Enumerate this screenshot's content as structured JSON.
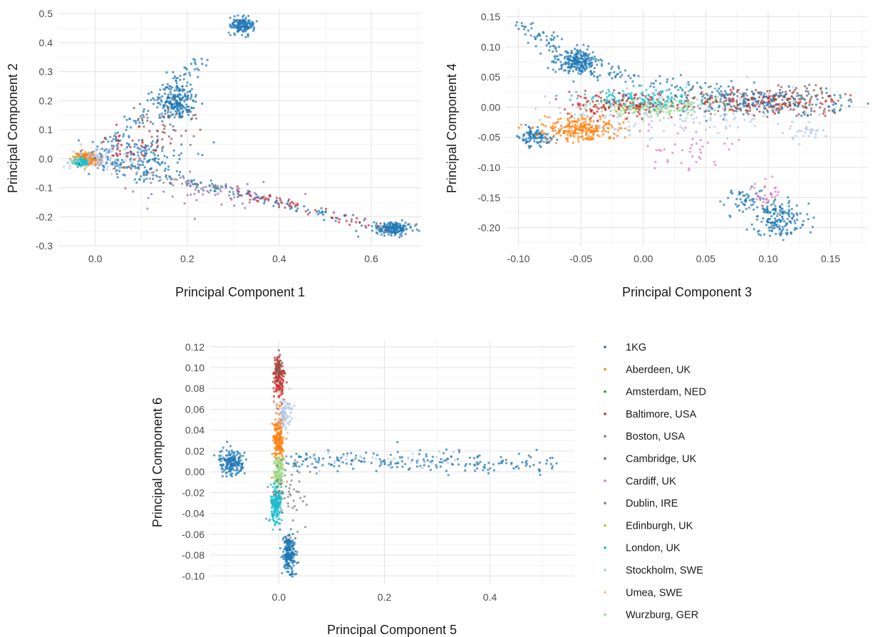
{
  "chart_data": [
    {
      "type": "scatter",
      "xlabel": "Principal Component 1",
      "ylabel": "Principal Component 2",
      "xlim": [
        -0.08,
        0.71
      ],
      "ylim": [
        -0.3,
        0.51
      ],
      "xticks": [
        0.0,
        0.2,
        0.4,
        0.6
      ],
      "yticks": [
        -0.3,
        -0.2,
        -0.1,
        0.0,
        0.1,
        0.2,
        0.3,
        0.4,
        0.5
      ],
      "xtick_labels": [
        "0.0",
        "0.2",
        "0.4",
        "0.6"
      ],
      "ytick_labels": [
        "-0.3",
        "-0.2",
        "-0.1",
        "0.0",
        "0.1",
        "0.2",
        "0.3",
        "0.4",
        "0.5"
      ],
      "grid": true,
      "clusters": [
        {
          "series": "Aberdeen, UK",
          "cx": -0.02,
          "cy": 0.0,
          "sx": 0.012,
          "sy": 0.01,
          "n": 260
        },
        {
          "series": "Wurzburg, GER",
          "cx": -0.035,
          "cy": -0.01,
          "sx": 0.008,
          "sy": 0.006,
          "n": 80
        },
        {
          "series": "London, UK",
          "cx": -0.03,
          "cy": -0.012,
          "sx": 0.008,
          "sy": 0.006,
          "n": 80
        },
        {
          "series": "Stockholm, SWE",
          "cx": 0.02,
          "cy": 0.0,
          "sx": 0.04,
          "sy": 0.02,
          "n": 120
        },
        {
          "series": "1KG",
          "cx": 0.32,
          "cy": 0.46,
          "sx": 0.012,
          "sy": 0.015,
          "n": 150
        },
        {
          "series": "1KG",
          "cx": 0.18,
          "cy": 0.19,
          "sx": 0.02,
          "sy": 0.03,
          "n": 200
        },
        {
          "series": "1KG",
          "cx": 0.65,
          "cy": -0.24,
          "sx": 0.02,
          "sy": 0.01,
          "n": 170
        },
        {
          "series": "1KG",
          "cx": 0.1,
          "cy": 0.0,
          "sx": 0.05,
          "sy": 0.04,
          "n": 140
        },
        {
          "series": "Baltimore, USA",
          "cx": 0.07,
          "cy": 0.04,
          "sx": 0.04,
          "sy": 0.03,
          "n": 40
        },
        {
          "series": "Boston, USA",
          "cx": 0.25,
          "cy": -0.12,
          "sx": 0.1,
          "sy": 0.04,
          "n": 50
        },
        {
          "series": "Cambridge, UK",
          "cx": 0.15,
          "cy": 0.12,
          "sx": 0.04,
          "sy": 0.05,
          "n": 40
        }
      ],
      "trails": [
        {
          "series": "1KG",
          "from": [
            0.0,
            0.0
          ],
          "to": [
            0.65,
            -0.25
          ],
          "spread": 0.01,
          "n": 140
        },
        {
          "series": "Baltimore, USA",
          "from": [
            0.3,
            -0.11
          ],
          "to": [
            0.65,
            -0.25
          ],
          "spread": 0.01,
          "n": 60
        },
        {
          "series": "1KG",
          "from": [
            0.02,
            0.02
          ],
          "to": [
            0.24,
            0.36
          ],
          "spread": 0.015,
          "n": 120
        },
        {
          "series": "Dublin, IRE",
          "from": [
            0.0,
            -0.02
          ],
          "to": [
            0.3,
            -0.12
          ],
          "spread": 0.01,
          "n": 60
        }
      ]
    },
    {
      "type": "scatter",
      "xlabel": "Principal Component 3",
      "ylabel": "Principal Component 4",
      "xlim": [
        -0.11,
        0.18
      ],
      "ylim": [
        -0.23,
        0.16
      ],
      "xticks": [
        -0.1,
        -0.05,
        0.0,
        0.05,
        0.1,
        0.15
      ],
      "yticks": [
        -0.2,
        -0.15,
        -0.1,
        -0.05,
        0.0,
        0.05,
        0.1,
        0.15
      ],
      "xtick_labels": [
        "-0.10",
        "-0.05",
        "0.00",
        "0.05",
        "0.10",
        "0.15"
      ],
      "ytick_labels": [
        "-0.20",
        "-0.15",
        "-0.10",
        "-0.05",
        "0.00",
        "0.05",
        "0.10",
        "0.15"
      ],
      "grid": true,
      "clusters": [
        {
          "series": "1KG",
          "cx": -0.052,
          "cy": 0.075,
          "sx": 0.008,
          "sy": 0.01,
          "n": 200
        },
        {
          "series": "1KG",
          "cx": -0.085,
          "cy": -0.05,
          "sx": 0.007,
          "sy": 0.008,
          "n": 100
        },
        {
          "series": "Aberdeen, UK",
          "cx": -0.05,
          "cy": -0.035,
          "sx": 0.015,
          "sy": 0.01,
          "n": 250
        },
        {
          "series": "Wurzburg, GER",
          "cx": 0.005,
          "cy": 0.0,
          "sx": 0.025,
          "sy": 0.008,
          "n": 200
        },
        {
          "series": "London, UK",
          "cx": 0.0,
          "cy": 0.015,
          "sx": 0.025,
          "sy": 0.008,
          "n": 150
        },
        {
          "series": "Stockholm, SWE",
          "cx": 0.02,
          "cy": -0.01,
          "sx": 0.05,
          "sy": 0.02,
          "n": 200
        },
        {
          "series": "Baltimore, USA",
          "cx": -0.02,
          "cy": 0.005,
          "sx": 0.02,
          "sy": 0.01,
          "n": 120
        },
        {
          "series": "Cambridge, UK",
          "cx": 0.1,
          "cy": 0.01,
          "sx": 0.035,
          "sy": 0.01,
          "n": 200
        },
        {
          "series": "Baltimore, USA",
          "cx": 0.1,
          "cy": 0.01,
          "sx": 0.035,
          "sy": 0.01,
          "n": 80
        },
        {
          "series": "1KG",
          "cx": 0.1,
          "cy": 0.01,
          "sx": 0.04,
          "sy": 0.012,
          "n": 150
        },
        {
          "series": "1KG",
          "cx": 0.11,
          "cy": -0.185,
          "sx": 0.01,
          "sy": 0.015,
          "n": 160
        },
        {
          "series": "1KG",
          "cx": 0.085,
          "cy": -0.155,
          "sx": 0.01,
          "sy": 0.01,
          "n": 60
        },
        {
          "series": "Cardiff, UK",
          "cx": 0.1,
          "cy": -0.145,
          "sx": 0.008,
          "sy": 0.01,
          "n": 30
        },
        {
          "series": "Cardiff, UK",
          "cx": 0.03,
          "cy": -0.07,
          "sx": 0.02,
          "sy": 0.015,
          "n": 40
        },
        {
          "series": "Stockholm, SWE",
          "cx": 0.13,
          "cy": -0.04,
          "sx": 0.01,
          "sy": 0.01,
          "n": 30
        }
      ],
      "trails": [
        {
          "series": "1KG",
          "from": [
            -0.1,
            0.14
          ],
          "to": [
            -0.05,
            0.07
          ],
          "spread": 0.006,
          "n": 80
        },
        {
          "series": "1KG",
          "from": [
            -0.04,
            0.06
          ],
          "to": [
            0.1,
            0.01
          ],
          "spread": 0.008,
          "n": 100
        }
      ]
    },
    {
      "type": "scatter",
      "xlabel": "Principal Component 5",
      "ylabel": "Principal Component 6",
      "xlim": [
        -0.13,
        0.56
      ],
      "ylim": [
        -0.108,
        0.126
      ],
      "xticks": [
        0.0,
        0.2,
        0.4
      ],
      "yticks": [
        -0.1,
        -0.08,
        -0.06,
        -0.04,
        -0.02,
        0.0,
        0.02,
        0.04,
        0.06,
        0.08,
        0.1,
        0.12
      ],
      "xtick_labels": [
        "0.0",
        "0.2",
        "0.4"
      ],
      "ytick_labels": [
        "-0.10",
        "-0.08",
        "-0.06",
        "-0.04",
        "-0.02",
        "0.00",
        "0.02",
        "0.04",
        "0.06",
        "0.08",
        "0.10",
        "0.12"
      ],
      "grid": true,
      "clusters": [
        {
          "series": "1KG",
          "cx": -0.09,
          "cy": 0.01,
          "sx": 0.012,
          "sy": 0.006,
          "n": 170
        },
        {
          "series": "1KG",
          "cx": 0.02,
          "cy": -0.08,
          "sx": 0.006,
          "sy": 0.01,
          "n": 200
        },
        {
          "series": "Aberdeen, UK",
          "cx": 0.0,
          "cy": 0.03,
          "sx": 0.005,
          "sy": 0.015,
          "n": 200
        },
        {
          "series": "London, UK",
          "cx": -0.005,
          "cy": -0.03,
          "sx": 0.005,
          "sy": 0.01,
          "n": 180
        },
        {
          "series": "Wurzburg, GER",
          "cx": 0.0,
          "cy": 0.0,
          "sx": 0.005,
          "sy": 0.008,
          "n": 100
        },
        {
          "series": "Baltimore, USA",
          "cx": 0.0,
          "cy": 0.09,
          "sx": 0.005,
          "sy": 0.01,
          "n": 120
        },
        {
          "series": "Cambridge, UK",
          "cx": 0.0,
          "cy": 0.1,
          "sx": 0.004,
          "sy": 0.008,
          "n": 60
        },
        {
          "series": "Stockholm, SWE",
          "cx": 0.01,
          "cy": 0.055,
          "sx": 0.008,
          "sy": 0.008,
          "n": 80
        },
        {
          "series": "Dublin, IRE",
          "cx": 0.02,
          "cy": -0.02,
          "sx": 0.02,
          "sy": 0.02,
          "n": 60
        }
      ],
      "trails": [
        {
          "series": "1KG",
          "from": [
            0.02,
            0.012
          ],
          "to": [
            0.52,
            0.008
          ],
          "spread": 0.005,
          "n": 200
        },
        {
          "series": "Stockholm, SWE",
          "from": [
            0.05,
            0.012
          ],
          "to": [
            0.33,
            0.012
          ],
          "spread": 0.004,
          "n": 40
        }
      ]
    }
  ],
  "legend": {
    "placement": "right",
    "items": [
      {
        "name": "1KG",
        "color": "#1f77b4"
      },
      {
        "name": "Aberdeen, UK",
        "color": "#ff7f0e"
      },
      {
        "name": "Amsterdam, NED",
        "color": "#2ca02c"
      },
      {
        "name": "Baltimore, USA",
        "color": "#d62728"
      },
      {
        "name": "Boston, USA",
        "color": "#9467bd"
      },
      {
        "name": "Cambridge, UK",
        "color": "#8c564b"
      },
      {
        "name": "Cardiff, UK",
        "color": "#e377c2"
      },
      {
        "name": "Dublin, IRE",
        "color": "#7f7f7f"
      },
      {
        "name": "Edinburgh, UK",
        "color": "#bcbd22"
      },
      {
        "name": "London, UK",
        "color": "#17becf"
      },
      {
        "name": "Stockholm, SWE",
        "color": "#aec7e8"
      },
      {
        "name": "Umea, SWE",
        "color": "#ffbb78"
      },
      {
        "name": "Wurzburg, GER",
        "color": "#98df8a"
      }
    ]
  }
}
